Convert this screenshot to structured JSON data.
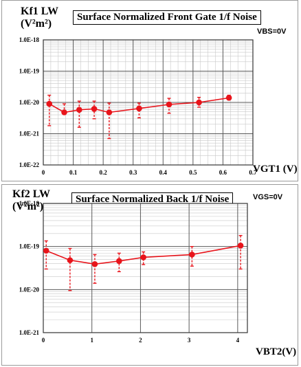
{
  "chart_data": [
    {
      "type": "scatter",
      "title": "Surface Normalized Front Gate 1/f Noise",
      "ylabel_line1": "Kf1 LW",
      "ylabel_line2": "(V²m²)",
      "xlabel": "VGT1 (V)",
      "annotation": "VBS=0V",
      "y_scale": "log",
      "ylim": [
        1e-22,
        1e-18
      ],
      "xlim": [
        0,
        0.7
      ],
      "x_ticks": [
        0,
        0.1,
        0.2,
        0.3,
        0.4,
        0.5,
        0.6,
        0.7
      ],
      "x_tick_labels": [
        "0",
        "0.1",
        "0.2",
        "0.3",
        "0.4",
        "0.5",
        "0.6",
        "0.7"
      ],
      "y_ticks": [
        1e-22,
        1e-21,
        1e-20,
        1e-19,
        1e-18
      ],
      "y_tick_labels": [
        "1.0E-22",
        "1.0E-21",
        "1.0E-20",
        "1.0E-19",
        "1.0E-18"
      ],
      "grid": true,
      "color": "#e8141b",
      "series": [
        {
          "x": [
            0.02,
            0.07,
            0.12,
            0.17,
            0.22,
            0.32,
            0.42,
            0.52,
            0.62
          ],
          "y": [
            9e-21,
            4.8e-21,
            5.8e-21,
            6.2e-21,
            4.8e-21,
            6.4e-21,
            8.6e-21,
            1e-20,
            1.4e-20
          ],
          "err_high": [
            1.7e-20,
            9e-21,
            1.1e-20,
            1.1e-20,
            9.5e-21,
            9.5e-21,
            1.35e-20,
            1.45e-20,
            1.7e-20
          ],
          "err_low": [
            1.8e-21,
            4.8e-21,
            1.6e-21,
            3e-21,
            7e-22,
            3.2e-21,
            4.5e-21,
            7e-21,
            1.2e-20
          ]
        }
      ]
    },
    {
      "type": "scatter",
      "title": "Surface Normalized Back 1/f Noise",
      "ylabel_line1": "Kf2 LW",
      "ylabel_line2": "(V²m²)",
      "xlabel": "VBT2(V)",
      "annotation": "VGS=0V",
      "y_scale": "log",
      "ylim": [
        1e-21,
        1e-18
      ],
      "xlim": [
        0,
        4.2
      ],
      "x_ticks": [
        0,
        1,
        2,
        3,
        4
      ],
      "x_tick_labels": [
        "0",
        "1",
        "2",
        "3",
        "4"
      ],
      "y_ticks": [
        1e-21,
        1e-20,
        1e-19,
        1e-18
      ],
      "y_tick_labels": [
        "1.0E-21",
        "1.0E-20",
        "1.0E-19",
        "1.0E-18"
      ],
      "grid": true,
      "color": "#e8141b",
      "series": [
        {
          "x": [
            0.06,
            0.55,
            1.06,
            1.56,
            2.06,
            3.06,
            4.06
          ],
          "y": [
            8e-20,
            4.8e-20,
            3.9e-20,
            4.6e-20,
            5.6e-20,
            6.5e-20,
            1.05e-19
          ],
          "err_high": [
            1.35e-19,
            9e-20,
            6.5e-20,
            7e-20,
            7.5e-20,
            1e-19,
            1.8e-19
          ],
          "err_low": [
            3e-20,
            9.5e-21,
            1.4e-20,
            2.6e-20,
            3.8e-20,
            3.5e-20,
            3e-20
          ]
        }
      ]
    }
  ]
}
